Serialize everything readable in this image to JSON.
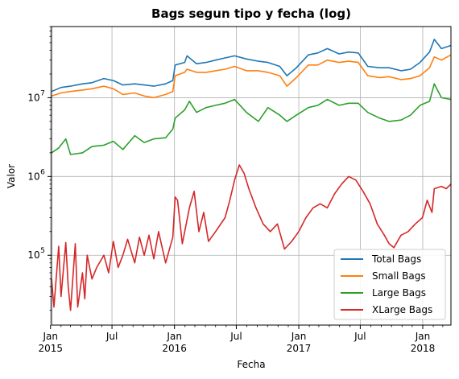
{
  "chart_data": {
    "type": "line",
    "title": "Bags segun tipo y fecha (log)",
    "xlabel": "Fecha",
    "ylabel": "Valor",
    "yscale": "log",
    "ylim": [
      13000,
      80000000
    ],
    "xlim": [
      "2015-01-04",
      "2018-03-25"
    ],
    "grid": true,
    "legend_position": "lower-right",
    "x_ticks": [
      {
        "date": "2015-01-01",
        "line1": "Jan",
        "line2": "2015"
      },
      {
        "date": "2015-07-01",
        "line1": "Jul",
        "line2": ""
      },
      {
        "date": "2016-01-01",
        "line1": "Jan",
        "line2": "2016"
      },
      {
        "date": "2016-07-01",
        "line1": "Jul",
        "line2": ""
      },
      {
        "date": "2017-01-01",
        "line1": "Jan",
        "line2": "2017"
      },
      {
        "date": "2017-07-01",
        "line1": "Jul",
        "line2": ""
      },
      {
        "date": "2018-01-01",
        "line1": "Jan",
        "line2": "2018"
      }
    ],
    "y_ticks": [
      {
        "value": 100000,
        "label": "10",
        "exp": "5"
      },
      {
        "value": 1000000,
        "label": "10",
        "exp": "6"
      },
      {
        "value": 10000000,
        "label": "10",
        "exp": "7"
      }
    ],
    "series": [
      {
        "name": "Total Bags",
        "color": "#1f77b4",
        "points": [
          [
            "2015-01-04",
            12000000
          ],
          [
            "2015-02-01",
            13500000
          ],
          [
            "2015-03-01",
            14000000
          ],
          [
            "2015-04-05",
            15000000
          ],
          [
            "2015-05-03",
            15500000
          ],
          [
            "2015-06-07",
            17500000
          ],
          [
            "2015-07-05",
            16500000
          ],
          [
            "2015-08-02",
            14500000
          ],
          [
            "2015-09-06",
            15000000
          ],
          [
            "2015-10-04",
            14500000
          ],
          [
            "2015-11-01",
            14000000
          ],
          [
            "2015-12-06",
            15000000
          ],
          [
            "2015-12-27",
            16500000
          ],
          [
            "2016-01-03",
            26000000
          ],
          [
            "2016-01-31",
            28000000
          ],
          [
            "2016-02-07",
            34000000
          ],
          [
            "2016-03-06",
            27000000
          ],
          [
            "2016-04-03",
            28000000
          ],
          [
            "2016-05-01",
            30000000
          ],
          [
            "2016-05-29",
            32000000
          ],
          [
            "2016-06-26",
            34000000
          ],
          [
            "2016-07-31",
            31000000
          ],
          [
            "2016-09-04",
            29000000
          ],
          [
            "2016-10-02",
            28000000
          ],
          [
            "2016-11-06",
            25000000
          ],
          [
            "2016-11-27",
            19000000
          ],
          [
            "2016-12-25",
            24000000
          ],
          [
            "2017-01-29",
            35000000
          ],
          [
            "2017-02-26",
            37000000
          ],
          [
            "2017-03-26",
            42000000
          ],
          [
            "2017-04-30",
            36000000
          ],
          [
            "2017-05-28",
            38000000
          ],
          [
            "2017-06-25",
            37000000
          ],
          [
            "2017-07-23",
            25000000
          ],
          [
            "2017-08-27",
            24000000
          ],
          [
            "2017-09-24",
            24000000
          ],
          [
            "2017-10-29",
            22000000
          ],
          [
            "2017-11-26",
            23000000
          ],
          [
            "2017-12-24",
            28000000
          ],
          [
            "2018-01-21",
            38000000
          ],
          [
            "2018-02-04",
            55000000
          ],
          [
            "2018-02-25",
            42000000
          ],
          [
            "2018-03-25",
            46000000
          ]
        ]
      },
      {
        "name": "Small Bags",
        "color": "#ff7f0e",
        "points": [
          [
            "2015-01-04",
            10500000
          ],
          [
            "2015-02-01",
            11500000
          ],
          [
            "2015-03-01",
            12000000
          ],
          [
            "2015-04-05",
            12500000
          ],
          [
            "2015-05-03",
            13000000
          ],
          [
            "2015-06-07",
            14000000
          ],
          [
            "2015-07-05",
            13000000
          ],
          [
            "2015-08-02",
            11000000
          ],
          [
            "2015-09-06",
            11500000
          ],
          [
            "2015-10-04",
            10500000
          ],
          [
            "2015-11-01",
            10000000
          ],
          [
            "2015-12-06",
            11000000
          ],
          [
            "2015-12-27",
            12000000
          ],
          [
            "2016-01-03",
            19000000
          ],
          [
            "2016-01-31",
            21000000
          ],
          [
            "2016-02-07",
            23000000
          ],
          [
            "2016-03-06",
            21000000
          ],
          [
            "2016-04-03",
            21000000
          ],
          [
            "2016-05-01",
            22000000
          ],
          [
            "2016-05-29",
            23000000
          ],
          [
            "2016-06-26",
            25000000
          ],
          [
            "2016-07-31",
            22000000
          ],
          [
            "2016-09-04",
            22000000
          ],
          [
            "2016-10-02",
            21000000
          ],
          [
            "2016-11-06",
            19000000
          ],
          [
            "2016-11-27",
            14000000
          ],
          [
            "2016-12-25",
            18000000
          ],
          [
            "2017-01-29",
            26000000
          ],
          [
            "2017-02-26",
            26000000
          ],
          [
            "2017-03-26",
            30000000
          ],
          [
            "2017-04-30",
            28000000
          ],
          [
            "2017-05-28",
            29000000
          ],
          [
            "2017-06-25",
            28000000
          ],
          [
            "2017-07-23",
            19000000
          ],
          [
            "2017-08-27",
            18000000
          ],
          [
            "2017-09-24",
            18500000
          ],
          [
            "2017-10-29",
            17000000
          ],
          [
            "2017-11-26",
            17500000
          ],
          [
            "2017-12-24",
            19000000
          ],
          [
            "2018-01-21",
            24000000
          ],
          [
            "2018-02-04",
            33000000
          ],
          [
            "2018-02-25",
            30000000
          ],
          [
            "2018-03-25",
            35000000
          ]
        ]
      },
      {
        "name": "Large Bags",
        "color": "#2ca02c",
        "points": [
          [
            "2015-01-04",
            2000000
          ],
          [
            "2015-01-25",
            2300000
          ],
          [
            "2015-02-15",
            3000000
          ],
          [
            "2015-03-01",
            1900000
          ],
          [
            "2015-04-05",
            2000000
          ],
          [
            "2015-05-03",
            2400000
          ],
          [
            "2015-06-07",
            2500000
          ],
          [
            "2015-07-05",
            2800000
          ],
          [
            "2015-08-02",
            2200000
          ],
          [
            "2015-09-06",
            3300000
          ],
          [
            "2015-10-04",
            2700000
          ],
          [
            "2015-11-01",
            3000000
          ],
          [
            "2015-12-06",
            3100000
          ],
          [
            "2015-12-27",
            4000000
          ],
          [
            "2016-01-03",
            5500000
          ],
          [
            "2016-01-31",
            7000000
          ],
          [
            "2016-02-14",
            9000000
          ],
          [
            "2016-03-06",
            6500000
          ],
          [
            "2016-04-03",
            7500000
          ],
          [
            "2016-05-01",
            8000000
          ],
          [
            "2016-05-29",
            8500000
          ],
          [
            "2016-06-26",
            9500000
          ],
          [
            "2016-07-31",
            6500000
          ],
          [
            "2016-09-04",
            5000000
          ],
          [
            "2016-10-02",
            7500000
          ],
          [
            "2016-11-06",
            6000000
          ],
          [
            "2016-11-27",
            5000000
          ],
          [
            "2016-12-25",
            6000000
          ],
          [
            "2017-01-29",
            7500000
          ],
          [
            "2017-02-26",
            8000000
          ],
          [
            "2017-03-26",
            9500000
          ],
          [
            "2017-04-30",
            8000000
          ],
          [
            "2017-05-28",
            8500000
          ],
          [
            "2017-06-25",
            8500000
          ],
          [
            "2017-07-23",
            6500000
          ],
          [
            "2017-08-27",
            5500000
          ],
          [
            "2017-09-24",
            5000000
          ],
          [
            "2017-10-29",
            5200000
          ],
          [
            "2017-11-26",
            6000000
          ],
          [
            "2017-12-24",
            8000000
          ],
          [
            "2018-01-21",
            9000000
          ],
          [
            "2018-02-04",
            15000000
          ],
          [
            "2018-02-25",
            10000000
          ],
          [
            "2018-03-25",
            9500000
          ]
        ]
      },
      {
        "name": "XLarge Bags",
        "color": "#d62728",
        "points": [
          [
            "2015-01-04",
            50000
          ],
          [
            "2015-01-11",
            22000
          ],
          [
            "2015-01-25",
            130000
          ],
          [
            "2015-02-01",
            30000
          ],
          [
            "2015-02-15",
            145000
          ],
          [
            "2015-02-22",
            40000
          ],
          [
            "2015-03-01",
            20000
          ],
          [
            "2015-03-15",
            140000
          ],
          [
            "2015-03-22",
            22000
          ],
          [
            "2015-04-05",
            60000
          ],
          [
            "2015-04-12",
            28000
          ],
          [
            "2015-04-19",
            100000
          ],
          [
            "2015-05-03",
            50000
          ],
          [
            "2015-05-17",
            70000
          ],
          [
            "2015-06-07",
            100000
          ],
          [
            "2015-06-21",
            60000
          ],
          [
            "2015-07-05",
            150000
          ],
          [
            "2015-07-19",
            70000
          ],
          [
            "2015-08-02",
            100000
          ],
          [
            "2015-08-16",
            160000
          ],
          [
            "2015-09-06",
            80000
          ],
          [
            "2015-09-20",
            170000
          ],
          [
            "2015-10-04",
            100000
          ],
          [
            "2015-10-18",
            180000
          ],
          [
            "2015-11-01",
            90000
          ],
          [
            "2015-11-15",
            200000
          ],
          [
            "2015-12-06",
            80000
          ],
          [
            "2015-12-27",
            170000
          ],
          [
            "2016-01-03",
            550000
          ],
          [
            "2016-01-10",
            500000
          ],
          [
            "2016-01-24",
            140000
          ],
          [
            "2016-02-14",
            400000
          ],
          [
            "2016-02-28",
            650000
          ],
          [
            "2016-03-13",
            200000
          ],
          [
            "2016-03-27",
            350000
          ],
          [
            "2016-04-10",
            150000
          ],
          [
            "2016-05-01",
            200000
          ],
          [
            "2016-05-29",
            300000
          ],
          [
            "2016-06-12",
            500000
          ],
          [
            "2016-06-26",
            900000
          ],
          [
            "2016-07-10",
            1400000
          ],
          [
            "2016-07-24",
            1100000
          ],
          [
            "2016-08-07",
            700000
          ],
          [
            "2016-08-28",
            400000
          ],
          [
            "2016-09-18",
            250000
          ],
          [
            "2016-10-09",
            200000
          ],
          [
            "2016-10-30",
            250000
          ],
          [
            "2016-11-20",
            120000
          ],
          [
            "2016-12-11",
            150000
          ],
          [
            "2017-01-01",
            200000
          ],
          [
            "2017-01-22",
            300000
          ],
          [
            "2017-02-12",
            400000
          ],
          [
            "2017-03-05",
            450000
          ],
          [
            "2017-03-26",
            400000
          ],
          [
            "2017-04-16",
            600000
          ],
          [
            "2017-05-07",
            800000
          ],
          [
            "2017-05-28",
            1000000
          ],
          [
            "2017-06-18",
            900000
          ],
          [
            "2017-07-09",
            650000
          ],
          [
            "2017-07-30",
            450000
          ],
          [
            "2017-08-20",
            250000
          ],
          [
            "2017-09-10",
            180000
          ],
          [
            "2017-09-24",
            140000
          ],
          [
            "2017-10-08",
            125000
          ],
          [
            "2017-10-29",
            180000
          ],
          [
            "2017-11-19",
            200000
          ],
          [
            "2017-12-10",
            250000
          ],
          [
            "2017-12-31",
            300000
          ],
          [
            "2018-01-14",
            500000
          ],
          [
            "2018-01-28",
            350000
          ],
          [
            "2018-02-04",
            700000
          ],
          [
            "2018-02-25",
            750000
          ],
          [
            "2018-03-11",
            700000
          ],
          [
            "2018-03-25",
            800000
          ]
        ]
      }
    ]
  }
}
